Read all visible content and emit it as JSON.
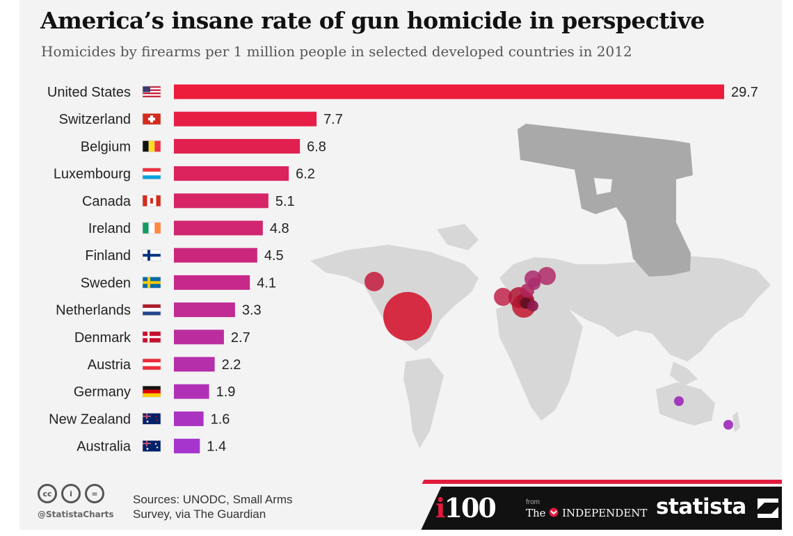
{
  "title": "America’s insane rate of gun homicide in perspective",
  "subtitle": "Homicides by firearms per 1 million people in selected developed countries in 2012",
  "chart_data": {
    "type": "bar",
    "orientation": "horizontal",
    "title": "America’s insane rate of gun homicide in perspective",
    "subtitle": "Homicides by firearms per 1 million people in selected developed countries in 2012",
    "unit": "homicides by firearms per 1 million people",
    "categories": [
      "United States",
      "Switzerland",
      "Belgium",
      "Luxembourg",
      "Canada",
      "Ireland",
      "Finland",
      "Sweden",
      "Netherlands",
      "Denmark",
      "Austria",
      "Germany",
      "New Zealand",
      "Australia"
    ],
    "values": [
      29.7,
      7.7,
      6.8,
      6.2,
      5.1,
      4.8,
      4.5,
      4.1,
      3.3,
      2.7,
      2.2,
      1.9,
      1.6,
      1.4
    ],
    "labels": [
      "29.7",
      "7.7",
      "6.8",
      "6.2",
      "5.1",
      "4.8",
      "4.5",
      "4.1",
      "3.3",
      "2.7",
      "2.2",
      "1.9",
      "1.6",
      "1.4"
    ],
    "flags": [
      "us-flag",
      "switzerland-flag",
      "belgium-flag",
      "luxembourg-flag",
      "canada-flag",
      "ireland-flag",
      "finland-flag",
      "sweden-flag",
      "netherlands-flag",
      "denmark-flag",
      "austria-flag",
      "germany-flag",
      "new-zealand-flag",
      "australia-flag"
    ],
    "xlim": [
      0,
      30
    ],
    "grid": false,
    "legend": "none",
    "colors": {
      "bar_top": "#ec1c3a",
      "bar_bottom": "#a535cc",
      "map": "#d7d7d7",
      "gun": "#a9a9a9"
    }
  },
  "footer": {
    "license_icons": [
      "cc-icon",
      "attribution-icon",
      "no-derivatives-icon"
    ],
    "handle": "@StatistaCharts",
    "sources": "Sources: UNODC, Small Arms Survey, via The Guardian",
    "i100_prefix": "i",
    "i100_suffix": "100",
    "from": "from",
    "independent_the": "The",
    "independent_name": "INDEPENDENT",
    "statista": "statista"
  }
}
